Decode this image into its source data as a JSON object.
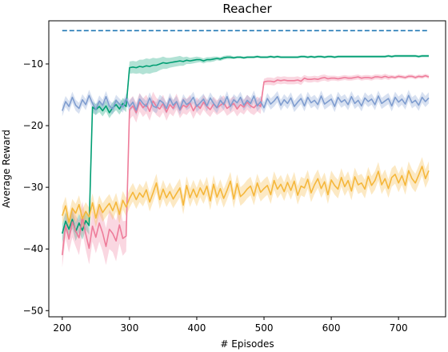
{
  "chart_data": {
    "type": "line",
    "title": "Reacher",
    "xlabel": "# Episodes",
    "ylabel": "Average Reward",
    "xlim": [
      180,
      770
    ],
    "ylim": [
      -51,
      -3
    ],
    "xticks": [
      200,
      300,
      400,
      500,
      600,
      700
    ],
    "yticks": [
      -50,
      -40,
      -30,
      -20,
      -10
    ],
    "ytick_labels": [
      "−50",
      "−40",
      "−30",
      "−20",
      "−10"
    ],
    "grid": false,
    "legend": "none",
    "x_start": 200,
    "x_step": 5,
    "reference_line": {
      "y": -4.6,
      "color": "#1f77b4",
      "style": "dashed",
      "x": [
        200,
        745
      ]
    },
    "series": [
      {
        "color": "#009e73",
        "values": [
          -37.5,
          -35.5,
          -36.8,
          -35.2,
          -37.2,
          -35.8,
          -37.0,
          -35.4,
          -36.2,
          -17.0,
          -17.4,
          -16.9,
          -17.6,
          -16.8,
          -17.9,
          -17.1,
          -16.6,
          -17.3,
          -16.4,
          -16.9,
          -10.6,
          -10.5,
          -10.6,
          -10.4,
          -10.5,
          -10.3,
          -10.4,
          -10.2,
          -10.2,
          -10.0,
          -9.8,
          -9.9,
          -9.8,
          -9.7,
          -9.6,
          -9.5,
          -9.6,
          -9.4,
          -9.5,
          -9.4,
          -9.3,
          -9.3,
          -9.5,
          -9.3,
          -9.3,
          -9.2,
          -9.1,
          -9.2,
          -9.0,
          -8.9,
          -8.9,
          -9.0,
          -8.9,
          -8.9,
          -9.0,
          -8.9,
          -8.9,
          -8.9,
          -8.8,
          -8.9,
          -8.9,
          -8.9,
          -8.8,
          -8.9,
          -8.8,
          -8.9,
          -8.9,
          -8.9,
          -8.9,
          -8.9,
          -8.9,
          -8.8,
          -8.8,
          -8.9,
          -8.8,
          -8.9,
          -8.8,
          -8.8,
          -8.9,
          -8.8,
          -8.8,
          -8.9,
          -8.8,
          -8.8,
          -8.8,
          -8.8,
          -8.8,
          -8.8,
          -8.8,
          -8.8,
          -8.8,
          -8.8,
          -8.8,
          -8.8,
          -8.8,
          -8.8,
          -8.8,
          -8.7,
          -8.8,
          -8.7,
          -8.7,
          -8.7,
          -8.7,
          -8.7,
          -8.7,
          -8.7,
          -8.8,
          -8.7,
          -8.7,
          -8.7
        ],
        "band": [
          1.5,
          1.5,
          1.5,
          1.5,
          1.5,
          1.5,
          1.5,
          1.5,
          1.5,
          0.9,
          0.9,
          0.9,
          0.9,
          0.9,
          0.9,
          0.9,
          0.9,
          0.9,
          0.9,
          0.9,
          1.0,
          1.0,
          1.0,
          1.1,
          1.2,
          1.2,
          1.2,
          1.2,
          1.1,
          1.0,
          1.0,
          0.9,
          0.8,
          0.8,
          0.8,
          0.8,
          0.7,
          0.6,
          0.5,
          0.5,
          0.5,
          0.4,
          0.4,
          0.4,
          0.4,
          0.4,
          0.3,
          0.3,
          0.3,
          0.3,
          0.3,
          0.2,
          0.2,
          0.2,
          0.2,
          0.2,
          0.2,
          0.2,
          0.2,
          0.2,
          0.2,
          0.2,
          0.2,
          0.2,
          0.2,
          0.2,
          0.2,
          0.2,
          0.2,
          0.2,
          0.2,
          0.2,
          0.2,
          0.2,
          0.2,
          0.2,
          0.2,
          0.2,
          0.2,
          0.2,
          0.2,
          0.2,
          0.2,
          0.2,
          0.2,
          0.2,
          0.2,
          0.2,
          0.2,
          0.2,
          0.2,
          0.2,
          0.2,
          0.2,
          0.2,
          0.2,
          0.2,
          0.2,
          0.2,
          0.2,
          0.2,
          0.2,
          0.2,
          0.2,
          0.2,
          0.2,
          0.2,
          0.2,
          0.2,
          0.2
        ]
      },
      {
        "color": "#ee7c9a",
        "values": [
          -41.0,
          -36.2,
          -38.4,
          -35.6,
          -37.1,
          -38.2,
          -34.8,
          -37.6,
          -39.9,
          -36.3,
          -38.1,
          -35.8,
          -37.4,
          -39.6,
          -36.8,
          -37.5,
          -38.7,
          -36.1,
          -38.3,
          -37.9,
          -17.4,
          -16.8,
          -17.9,
          -16.2,
          -17.1,
          -16.5,
          -17.7,
          -16.0,
          -16.9,
          -17.3,
          -16.4,
          -17.8,
          -16.6,
          -17.2,
          -16.1,
          -17.5,
          -16.7,
          -17.0,
          -16.3,
          -17.6,
          -16.6,
          -17.2,
          -16.2,
          -16.9,
          -17.4,
          -16.5,
          -17.1,
          -16.7,
          -16.3,
          -17.2,
          -16.8,
          -16.4,
          -17.3,
          -16.6,
          -17.0,
          -16.2,
          -16.8,
          -17.1,
          -16.5,
          -16.9,
          -12.9,
          -12.8,
          -12.8,
          -12.9,
          -12.6,
          -12.7,
          -12.6,
          -12.7,
          -12.7,
          -12.7,
          -12.6,
          -12.8,
          -12.3,
          -12.5,
          -12.5,
          -12.4,
          -12.5,
          -12.3,
          -12.2,
          -12.4,
          -12.3,
          -12.3,
          -12.4,
          -12.3,
          -12.2,
          -12.3,
          -12.3,
          -12.2,
          -12.1,
          -12.3,
          -12.2,
          -12.2,
          -12.3,
          -12.1,
          -12.1,
          -12.2,
          -12.0,
          -12.2,
          -12.1,
          -12.2,
          -12.0,
          -12.1,
          -12.2,
          -12.0,
          -12.0,
          -12.2,
          -12.0,
          -12.1,
          -11.9,
          -12.1
        ],
        "band": [
          2.0,
          2.0,
          2.2,
          2.5,
          2.5,
          2.8,
          2.5,
          2.5,
          2.6,
          2.5,
          2.6,
          3.0,
          3.0,
          3.0,
          3.2,
          3.0,
          3.3,
          3.0,
          2.8,
          2.5,
          1.6,
          1.6,
          1.6,
          1.5,
          1.5,
          1.5,
          1.5,
          1.5,
          1.4,
          1.4,
          1.4,
          1.4,
          1.4,
          1.3,
          1.3,
          1.3,
          1.3,
          1.3,
          1.3,
          1.3,
          1.2,
          1.2,
          1.2,
          1.2,
          1.2,
          1.2,
          1.2,
          1.2,
          1.2,
          1.2,
          1.2,
          1.2,
          1.2,
          1.2,
          1.2,
          1.2,
          1.2,
          1.2,
          1.2,
          1.2,
          0.5,
          0.6,
          0.6,
          0.6,
          0.6,
          0.6,
          0.6,
          0.6,
          0.6,
          0.6,
          0.6,
          0.6,
          0.5,
          0.5,
          0.5,
          0.5,
          0.5,
          0.5,
          0.5,
          0.5,
          0.4,
          0.4,
          0.4,
          0.4,
          0.4,
          0.4,
          0.4,
          0.4,
          0.4,
          0.4,
          0.4,
          0.4,
          0.4,
          0.4,
          0.4,
          0.4,
          0.4,
          0.4,
          0.3,
          0.3,
          0.3,
          0.3,
          0.3,
          0.3,
          0.3,
          0.3,
          0.3,
          0.3,
          0.3,
          0.3
        ]
      },
      {
        "color": "#7f9dcf",
        "values": [
          -17.6,
          -16.1,
          -16.9,
          -15.4,
          -16.7,
          -17.2,
          -15.8,
          -16.6,
          -15.1,
          -16.4,
          -17.4,
          -16.0,
          -16.7,
          -15.3,
          -16.8,
          -17.3,
          -15.9,
          -16.5,
          -17.0,
          -15.6,
          -16.9,
          -16.2,
          -17.5,
          -15.7,
          -16.4,
          -16.9,
          -15.5,
          -16.8,
          -17.1,
          -15.9,
          -16.3,
          -17.2,
          -15.6,
          -16.7,
          -16.1,
          -17.4,
          -15.8,
          -16.6,
          -16.2,
          -15.4,
          -16.9,
          -16.3,
          -15.7,
          -16.8,
          -15.5,
          -16.4,
          -17.1,
          -15.9,
          -16.6,
          -15.3,
          -16.9,
          -15.8,
          -16.3,
          -15.4,
          -16.7,
          -15.9,
          -16.4,
          -15.2,
          -16.8,
          -16.1,
          -17.1,
          -15.6,
          -16.5,
          -16.0,
          -15.3,
          -16.7,
          -15.8,
          -16.4,
          -15.5,
          -16.9,
          -16.2,
          -15.6,
          -16.8,
          -15.4,
          -16.3,
          -15.9,
          -16.6,
          -15.2,
          -16.5,
          -16.1,
          -15.7,
          -16.9,
          -15.4,
          -16.2,
          -15.8,
          -16.6,
          -15.3,
          -16.4,
          -15.9,
          -16.8,
          -15.5,
          -16.1,
          -15.7,
          -16.6,
          -15.2,
          -16.4,
          -16.0,
          -15.6,
          -16.8,
          -15.4,
          -16.2,
          -15.7,
          -16.5,
          -15.1,
          -16.3,
          -15.9,
          -16.7,
          -15.4,
          -16.1,
          -15.5
        ],
        "band": [
          0.9,
          0.9,
          0.9,
          0.9,
          0.9,
          0.9,
          0.9,
          0.9,
          0.9,
          0.9,
          0.9,
          0.9,
          0.9,
          0.9,
          0.9,
          0.9,
          0.9,
          0.9,
          0.9,
          0.9,
          0.9,
          0.9,
          0.9,
          0.9,
          0.9,
          0.9,
          0.9,
          0.9,
          0.9,
          0.9,
          0.9,
          0.9,
          0.9,
          0.9,
          0.9,
          0.9,
          0.9,
          0.9,
          0.9,
          0.9,
          0.9,
          0.9,
          0.9,
          0.9,
          0.9,
          0.9,
          0.9,
          0.9,
          0.9,
          0.9,
          0.9,
          0.9,
          0.9,
          0.9,
          0.9,
          0.9,
          0.9,
          0.9,
          0.9,
          0.9,
          0.9,
          0.9,
          0.9,
          0.9,
          0.9,
          0.9,
          0.9,
          0.9,
          0.9,
          0.9,
          0.9,
          0.9,
          0.9,
          0.9,
          0.9,
          0.9,
          0.9,
          0.9,
          0.9,
          0.9,
          0.9,
          0.9,
          0.9,
          0.9,
          0.9,
          0.9,
          0.9,
          0.9,
          0.9,
          0.9,
          0.9,
          0.9,
          0.9,
          0.9,
          0.9,
          0.9,
          0.9,
          0.9,
          0.9,
          0.9,
          0.9,
          0.9,
          0.9,
          0.9,
          0.9,
          0.9,
          0.9,
          0.9,
          0.9,
          0.9
        ]
      },
      {
        "color": "#f5b73b",
        "values": [
          -34.6,
          -33.0,
          -35.7,
          -33.4,
          -34.2,
          -32.8,
          -35.1,
          -33.9,
          -34.8,
          -32.5,
          -35.0,
          -32.8,
          -34.1,
          -33.3,
          -32.6,
          -33.8,
          -32.4,
          -34.4,
          -32.1,
          -33.2,
          -31.8,
          -30.8,
          -32.0,
          -30.9,
          -31.6,
          -30.4,
          -32.4,
          -30.9,
          -29.3,
          -32.0,
          -30.3,
          -31.7,
          -30.7,
          -31.9,
          -31.0,
          -30.1,
          -32.9,
          -29.7,
          -31.7,
          -30.3,
          -31.6,
          -30.1,
          -31.2,
          -29.8,
          -32.2,
          -29.5,
          -31.6,
          -30.2,
          -31.8,
          -30.5,
          -29.0,
          -31.9,
          -29.4,
          -31.5,
          -31.0,
          -30.3,
          -29.8,
          -31.4,
          -29.3,
          -30.8,
          -30.2,
          -29.7,
          -31.2,
          -28.9,
          -30.3,
          -29.5,
          -30.7,
          -29.2,
          -30.5,
          -29.0,
          -31.3,
          -29.8,
          -30.1,
          -28.7,
          -30.9,
          -29.6,
          -28.6,
          -30.2,
          -29.1,
          -31.2,
          -28.8,
          -29.7,
          -30.3,
          -28.4,
          -29.9,
          -28.9,
          -30.6,
          -28.3,
          -29.6,
          -29.3,
          -30.3,
          -28.2,
          -29.7,
          -28.9,
          -27.4,
          -29.6,
          -28.6,
          -30.2,
          -28.4,
          -27.9,
          -29.3,
          -28.1,
          -29.7,
          -27.3,
          -28.6,
          -29.3,
          -28.0,
          -26.6,
          -28.6,
          -27.3
        ],
        "band": [
          1.5,
          1.5,
          1.5,
          1.5,
          1.5,
          1.5,
          1.5,
          1.5,
          1.5,
          1.5,
          1.5,
          1.5,
          1.5,
          1.5,
          1.5,
          1.5,
          1.5,
          1.5,
          1.5,
          1.5,
          1.5,
          1.5,
          1.5,
          1.5,
          1.5,
          1.5,
          1.5,
          1.5,
          1.5,
          1.5,
          1.5,
          1.5,
          1.5,
          1.5,
          1.5,
          1.5,
          1.5,
          1.5,
          1.5,
          1.5,
          1.5,
          1.5,
          1.5,
          1.5,
          1.5,
          1.5,
          1.5,
          1.5,
          1.5,
          1.5,
          1.5,
          1.5,
          1.5,
          1.5,
          1.5,
          1.5,
          1.5,
          1.5,
          1.5,
          1.5,
          1.5,
          1.5,
          1.5,
          1.5,
          1.5,
          1.5,
          1.5,
          1.5,
          1.5,
          1.5,
          1.5,
          1.5,
          1.5,
          1.5,
          1.5,
          1.5,
          1.5,
          1.5,
          1.5,
          1.5,
          1.5,
          1.5,
          1.5,
          1.5,
          1.5,
          1.5,
          1.5,
          1.5,
          1.5,
          1.5,
          1.5,
          1.5,
          1.5,
          1.5,
          1.5,
          1.5,
          1.5,
          1.5,
          1.5,
          1.5,
          1.5,
          1.5,
          1.5,
          1.5,
          1.5,
          1.5,
          1.5,
          1.5,
          1.5,
          1.5
        ]
      }
    ]
  }
}
